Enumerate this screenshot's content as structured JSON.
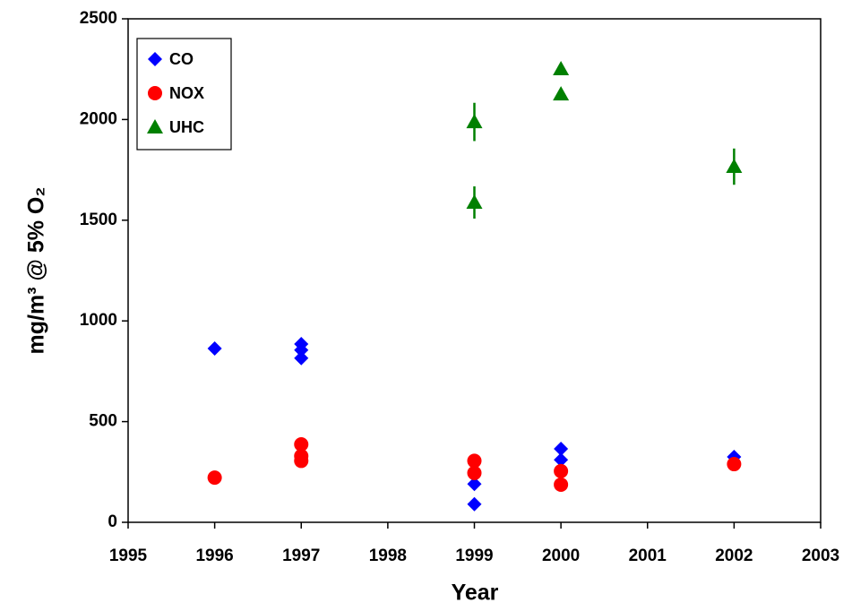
{
  "chart_data": {
    "type": "scatter",
    "xlabel": "Year",
    "ylabel": "mg/m³ @ 5% O₂",
    "xlim": [
      1995,
      2003
    ],
    "xticks": [
      1995,
      1996,
      1997,
      1998,
      1999,
      2000,
      2001,
      2002,
      2003
    ],
    "ylim": [
      0,
      2500
    ],
    "yticks": [
      0,
      500,
      1000,
      1500,
      2000,
      2500
    ],
    "grid": false,
    "legend": "upper left",
    "series": [
      {
        "name": "CO",
        "color": "#0000ff",
        "marker": "diamond",
        "x": [
          1996,
          1997,
          1997,
          1997,
          1999,
          1999,
          2000,
          2000,
          2002
        ],
        "values": [
          863,
          885,
          855,
          815,
          190,
          90,
          365,
          310,
          325
        ]
      },
      {
        "name": "NOX",
        "color": "#ff0000",
        "marker": "circle",
        "x": [
          1996,
          1997,
          1997,
          1997,
          1999,
          1999,
          2000,
          2000,
          2002
        ],
        "values": [
          222,
          387,
          329,
          305,
          305,
          245,
          254,
          187,
          289
        ]
      },
      {
        "name": "UHC",
        "color": "#008000",
        "marker": "triangle",
        "x": [
          1999,
          1999,
          2000,
          2000,
          2002
        ],
        "values": [
          1988,
          1588,
          2251,
          2126,
          1766
        ],
        "errors": [
          95,
          80,
          null,
          null,
          90
        ]
      }
    ]
  }
}
